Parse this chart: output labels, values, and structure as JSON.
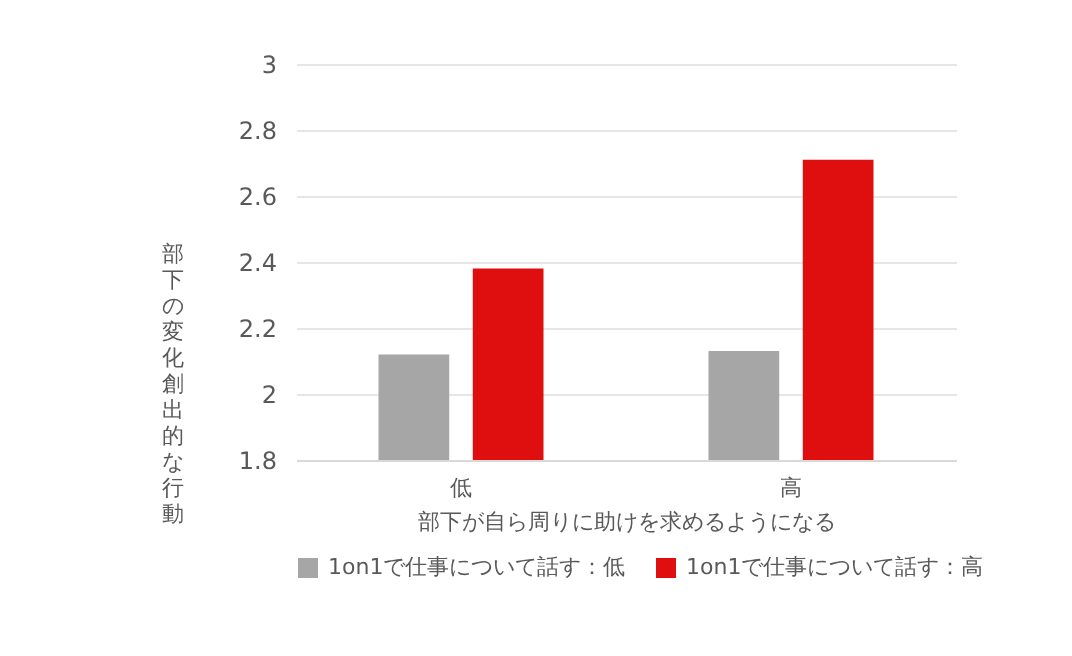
{
  "chart_data": {
    "type": "bar",
    "categories": [
      "低",
      "高"
    ],
    "xlabel": "部下が自ら周りに助けを求めるようになる",
    "ylabel": "部下の変化創出的な行動",
    "series": [
      {
        "name": "1on1で仕事について話す：低",
        "color": "#a6a6a6",
        "values": [
          2.12,
          2.13
        ]
      },
      {
        "name": "1on1で仕事について話す：高",
        "color": "#e00f0f",
        "values": [
          2.38,
          2.71
        ]
      }
    ],
    "ylim": [
      1.8,
      3
    ],
    "yticks": [
      1.8,
      2,
      2.2,
      2.4,
      2.6,
      2.8,
      3
    ],
    "grid": "y",
    "legend": "bottom"
  }
}
